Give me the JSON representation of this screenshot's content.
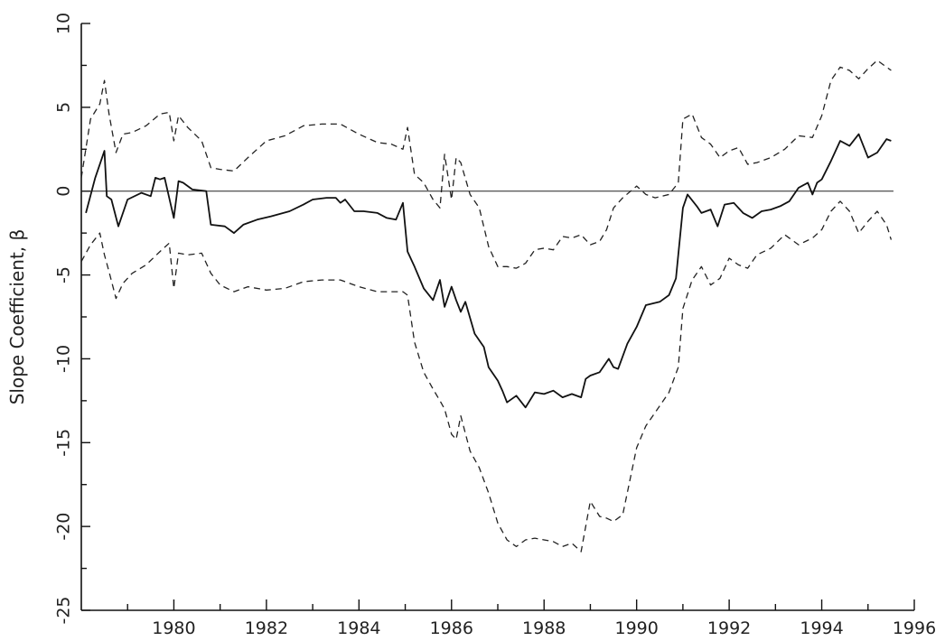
{
  "chart_data": {
    "type": "line",
    "title": "",
    "xlabel": "",
    "ylabel": "Slope Coefficient, β",
    "xlim": [
      1978.0,
      1996.0
    ],
    "ylim": [
      -25,
      10
    ],
    "xticks": [
      1980,
      1982,
      1984,
      1986,
      1988,
      1990,
      1992,
      1994,
      1996
    ],
    "yticks": [
      10,
      5,
      0,
      -5,
      -10,
      -15,
      -20,
      -25
    ],
    "xtick_labels": [
      "1980",
      "1982",
      "1984",
      "1986",
      "1988",
      "1990",
      "1992",
      "1994",
      "1996"
    ],
    "ytick_labels": [
      "10",
      "5",
      "0",
      "-5",
      "-10",
      "-15",
      "-20",
      "-25"
    ],
    "reference_line_y": 0,
    "grid": false,
    "legend": "none",
    "series": [
      {
        "style": "solid",
        "x": [
          1978.1,
          1978.3,
          1978.5,
          1978.55,
          1978.65,
          1978.8,
          1979.0,
          1979.3,
          1979.5,
          1979.6,
          1979.7,
          1979.8,
          1980.0,
          1980.1,
          1980.2,
          1980.4,
          1980.7,
          1980.8,
          1981.1,
          1981.3,
          1981.5,
          1981.8,
          1982.1,
          1982.5,
          1982.8,
          1983.0,
          1983.3,
          1983.5,
          1983.6,
          1983.7,
          1983.9,
          1984.1,
          1984.4,
          1984.6,
          1984.8,
          1984.95,
          1985.05,
          1985.2,
          1985.4,
          1985.6,
          1985.75,
          1985.85,
          1986.0,
          1986.1,
          1986.2,
          1986.3,
          1986.5,
          1986.7,
          1986.8,
          1987.0,
          1987.1,
          1987.2,
          1987.4,
          1987.6,
          1987.8,
          1988.0,
          1988.2,
          1988.4,
          1988.6,
          1988.8,
          1988.9,
          1989.0,
          1989.2,
          1989.4,
          1989.5,
          1989.6,
          1989.8,
          1990.0,
          1990.2,
          1990.5,
          1990.7,
          1990.85,
          1991.0,
          1991.1,
          1991.3,
          1991.4,
          1991.6,
          1991.75,
          1991.9,
          1992.1,
          1992.3,
          1992.5,
          1992.7,
          1992.9,
          1993.1,
          1993.3,
          1993.5,
          1993.7,
          1993.8,
          1993.9,
          1994.0,
          1994.2,
          1994.4,
          1994.6,
          1994.8,
          1995.0,
          1995.2,
          1995.4,
          1995.5
        ],
        "y": [
          -1.3,
          0.8,
          2.4,
          -0.3,
          -0.5,
          -2.1,
          -0.5,
          -0.1,
          -0.3,
          0.8,
          0.7,
          0.8,
          -1.6,
          0.6,
          0.5,
          0.1,
          0.0,
          -2.0,
          -2.1,
          -2.5,
          -2.0,
          -1.7,
          -1.5,
          -1.2,
          -0.8,
          -0.5,
          -0.4,
          -0.4,
          -0.7,
          -0.5,
          -1.2,
          -1.2,
          -1.3,
          -1.6,
          -1.7,
          -0.7,
          -3.6,
          -4.5,
          -5.8,
          -6.5,
          -5.3,
          -6.9,
          -5.7,
          -6.5,
          -7.2,
          -6.6,
          -8.5,
          -9.3,
          -10.5,
          -11.3,
          -11.9,
          -12.6,
          -12.2,
          -12.9,
          -12.0,
          -12.1,
          -11.9,
          -12.3,
          -12.1,
          -12.3,
          -11.2,
          -11.0,
          -10.8,
          -10.0,
          -10.5,
          -10.6,
          -9.1,
          -8.1,
          -6.8,
          -6.6,
          -6.2,
          -5.2,
          -1.0,
          -0.2,
          -0.9,
          -1.3,
          -1.1,
          -2.1,
          -0.8,
          -0.7,
          -1.3,
          -1.6,
          -1.2,
          -1.1,
          -0.9,
          -0.6,
          0.2,
          0.5,
          -0.2,
          0.5,
          0.7,
          1.8,
          3.0,
          2.7,
          3.4,
          2.0,
          2.3,
          3.1,
          3.0
        ]
      },
      {
        "style": "dashed",
        "x": [
          1978.0,
          1978.2,
          1978.4,
          1978.5,
          1978.6,
          1978.75,
          1978.9,
          1979.1,
          1979.4,
          1979.7,
          1979.9,
          1980.0,
          1980.1,
          1980.3,
          1980.6,
          1980.8,
          1981.0,
          1981.3,
          1981.6,
          1982.0,
          1982.4,
          1982.8,
          1983.2,
          1983.6,
          1984.0,
          1984.4,
          1984.7,
          1984.95,
          1985.05,
          1985.2,
          1985.4,
          1985.6,
          1985.75,
          1985.85,
          1986.0,
          1986.1,
          1986.2,
          1986.4,
          1986.6,
          1986.8,
          1987.0,
          1987.2,
          1987.4,
          1987.6,
          1987.8,
          1988.0,
          1988.2,
          1988.4,
          1988.6,
          1988.8,
          1989.0,
          1989.2,
          1989.35,
          1989.5,
          1989.7,
          1990.0,
          1990.2,
          1990.4,
          1990.7,
          1990.9,
          1991.0,
          1991.2,
          1991.4,
          1991.6,
          1991.8,
          1992.0,
          1992.2,
          1992.4,
          1992.6,
          1992.9,
          1993.2,
          1993.5,
          1993.8,
          1994.0,
          1994.2,
          1994.4,
          1994.6,
          1994.8,
          1995.0,
          1995.2,
          1995.4,
          1995.5
        ],
        "y": [
          0.8,
          4.3,
          5.2,
          6.6,
          4.6,
          2.3,
          3.4,
          3.5,
          3.9,
          4.6,
          4.7,
          3.0,
          4.5,
          3.8,
          3.0,
          1.4,
          1.3,
          1.2,
          2.0,
          3.0,
          3.3,
          3.9,
          4.0,
          4.0,
          3.4,
          2.9,
          2.8,
          2.5,
          3.8,
          1.0,
          0.5,
          -0.5,
          -1.0,
          2.2,
          -0.5,
          2.0,
          1.7,
          -0.2,
          -1.0,
          -3.3,
          -4.5,
          -4.5,
          -4.6,
          -4.3,
          -3.5,
          -3.4,
          -3.5,
          -2.7,
          -2.8,
          -2.6,
          -3.2,
          -3.0,
          -2.3,
          -1.0,
          -0.4,
          0.3,
          -0.2,
          -0.4,
          -0.2,
          0.5,
          4.3,
          4.6,
          3.2,
          2.8,
          2.0,
          2.4,
          2.6,
          1.6,
          1.7,
          2.0,
          2.5,
          3.3,
          3.2,
          4.5,
          6.6,
          7.4,
          7.2,
          6.7,
          7.3,
          7.8,
          7.4,
          7.2
        ]
      },
      {
        "style": "dashed",
        "x": [
          1978.0,
          1978.2,
          1978.4,
          1978.5,
          1978.6,
          1978.75,
          1978.9,
          1979.1,
          1979.4,
          1979.7,
          1979.9,
          1980.0,
          1980.1,
          1980.3,
          1980.6,
          1980.8,
          1981.0,
          1981.3,
          1981.6,
          1982.0,
          1982.4,
          1982.8,
          1983.2,
          1983.6,
          1984.0,
          1984.4,
          1984.7,
          1984.95,
          1985.05,
          1985.2,
          1985.4,
          1985.6,
          1985.75,
          1985.85,
          1986.0,
          1986.1,
          1986.2,
          1986.4,
          1986.6,
          1986.8,
          1987.0,
          1987.2,
          1987.4,
          1987.6,
          1987.8,
          1988.0,
          1988.2,
          1988.4,
          1988.6,
          1988.8,
          1989.0,
          1989.2,
          1989.35,
          1989.5,
          1989.7,
          1990.0,
          1990.2,
          1990.4,
          1990.7,
          1990.9,
          1991.0,
          1991.2,
          1991.4,
          1991.6,
          1991.8,
          1992.0,
          1992.2,
          1992.4,
          1992.6,
          1992.9,
          1993.2,
          1993.5,
          1993.8,
          1994.0,
          1994.2,
          1994.4,
          1994.6,
          1994.8,
          1995.0,
          1995.2,
          1995.4,
          1995.5
        ],
        "y": [
          -4.2,
          -3.2,
          -2.5,
          -3.8,
          -4.8,
          -6.4,
          -5.5,
          -4.9,
          -4.4,
          -3.6,
          -3.1,
          -5.8,
          -3.7,
          -3.8,
          -3.7,
          -4.9,
          -5.6,
          -6.0,
          -5.7,
          -5.9,
          -5.8,
          -5.4,
          -5.3,
          -5.3,
          -5.7,
          -6.0,
          -6.0,
          -6.0,
          -6.2,
          -9.0,
          -10.8,
          -11.8,
          -12.5,
          -13.0,
          -14.5,
          -14.8,
          -13.4,
          -15.5,
          -16.5,
          -18.0,
          -19.8,
          -20.8,
          -21.2,
          -20.8,
          -20.7,
          -20.8,
          -20.9,
          -21.2,
          -21.0,
          -21.5,
          -18.5,
          -19.4,
          -19.5,
          -19.7,
          -19.3,
          -15.3,
          -14.0,
          -13.2,
          -12.0,
          -10.5,
          -7.0,
          -5.3,
          -4.5,
          -5.6,
          -5.2,
          -4.0,
          -4.4,
          -4.6,
          -3.8,
          -3.4,
          -2.6,
          -3.2,
          -2.8,
          -2.3,
          -1.2,
          -0.6,
          -1.2,
          -2.5,
          -1.8,
          -1.2,
          -2.0,
          -2.9
        ]
      }
    ]
  }
}
